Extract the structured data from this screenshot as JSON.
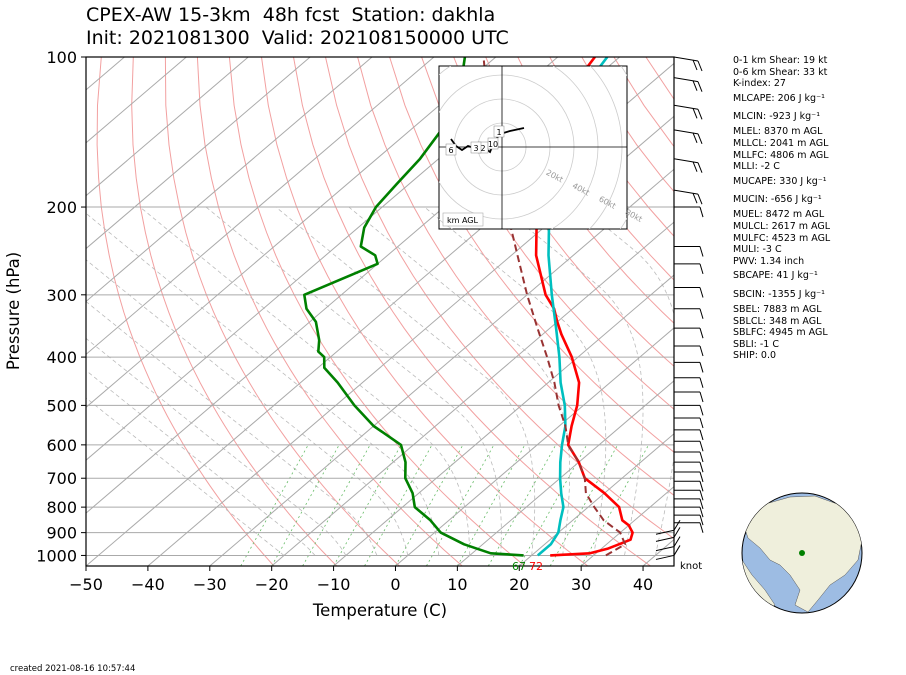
{
  "header": {
    "title_line1": "CPEX-AW 15-3km  48h fcst  Station: dakhla",
    "title_line2": "Init: 2021081300  Valid: 202108150000 UTC"
  },
  "footer": {
    "created": "created 2021-08-16 10:57:44"
  },
  "chart_data": {
    "type": "line",
    "chart_kind": "skew-T log-P sounding",
    "xlabel": "Temperature (C)",
    "ylabel": "Pressure (hPa)",
    "xlim": [
      -50,
      45
    ],
    "ylim": [
      1050,
      100
    ],
    "y_scale": "log",
    "x_ticks": [
      "−50",
      "−40",
      "−30",
      "−20",
      "−10",
      "0",
      "10",
      "20",
      "30",
      "40"
    ],
    "y_ticks": [
      1000,
      900,
      800,
      700,
      600,
      500,
      400,
      300,
      200,
      100
    ],
    "grid": true,
    "colors": {
      "temperature": "#ff0000",
      "dewpoint": "#008000",
      "virtual_temperature": "#00bfbf",
      "parcel": "#993333",
      "dry_adiabat": "#f4a0a0",
      "moist_adiabat": "#bbbbbb",
      "mixing_ratio": "#66bb66"
    },
    "series": [
      {
        "key": "temperature",
        "points": [
          [
            1000,
            23
          ],
          [
            990,
            29
          ],
          [
            970,
            31
          ],
          [
            950,
            32
          ],
          [
            930,
            33
          ],
          [
            900,
            32
          ],
          [
            870,
            30
          ],
          [
            850,
            28
          ],
          [
            800,
            25
          ],
          [
            750,
            20
          ],
          [
            700,
            14
          ],
          [
            650,
            10
          ],
          [
            600,
            5
          ],
          [
            550,
            2
          ],
          [
            500,
            -1
          ],
          [
            450,
            -5
          ],
          [
            400,
            -11
          ],
          [
            360,
            -17
          ],
          [
            340,
            -20
          ],
          [
            320,
            -23
          ],
          [
            300,
            -27
          ],
          [
            250,
            -36
          ],
          [
            200,
            -45
          ],
          [
            170,
            -51
          ],
          [
            150,
            -55
          ],
          [
            130,
            -59
          ],
          [
            115,
            -62
          ],
          [
            100,
            -64
          ]
        ]
      },
      {
        "key": "virtual_temperature",
        "points": [
          [
            1000,
            21
          ],
          [
            950,
            21
          ],
          [
            900,
            20
          ],
          [
            850,
            18
          ],
          [
            800,
            16
          ],
          [
            750,
            13
          ],
          [
            700,
            10
          ],
          [
            650,
            7
          ],
          [
            600,
            4
          ],
          [
            550,
            1
          ],
          [
            500,
            -3
          ],
          [
            450,
            -8
          ],
          [
            400,
            -13
          ],
          [
            350,
            -19
          ],
          [
            300,
            -26
          ],
          [
            250,
            -34
          ],
          [
            200,
            -43
          ],
          [
            170,
            -49
          ],
          [
            150,
            -53
          ],
          [
            130,
            -57
          ],
          [
            115,
            -60
          ],
          [
            100,
            -62
          ]
        ]
      },
      {
        "key": "dewpoint",
        "points": [
          [
            1000,
            18.7
          ],
          [
            990,
            13
          ],
          [
            970,
            10
          ],
          [
            950,
            7
          ],
          [
            900,
            1
          ],
          [
            850,
            -3
          ],
          [
            800,
            -8
          ],
          [
            750,
            -11
          ],
          [
            700,
            -15
          ],
          [
            650,
            -18
          ],
          [
            600,
            -22
          ],
          [
            550,
            -30
          ],
          [
            500,
            -37
          ],
          [
            450,
            -44
          ],
          [
            420,
            -49
          ],
          [
            400,
            -51
          ],
          [
            390,
            -53
          ],
          [
            370,
            -55
          ],
          [
            340,
            -59
          ],
          [
            320,
            -63
          ],
          [
            300,
            -66
          ],
          [
            260,
            -60
          ],
          [
            250,
            -62
          ],
          [
            240,
            -66
          ],
          [
            220,
            -69
          ],
          [
            200,
            -71
          ],
          [
            180,
            -72
          ],
          [
            160,
            -73
          ],
          [
            140,
            -75
          ],
          [
            130,
            -76
          ],
          [
            115,
            -80
          ],
          [
            100,
            -85
          ]
        ]
      },
      {
        "key": "parcel",
        "points": [
          [
            1000,
            32
          ],
          [
            950,
            33
          ],
          [
            900,
            30
          ],
          [
            850,
            25
          ],
          [
            800,
            21
          ],
          [
            750,
            17
          ],
          [
            700,
            14
          ],
          [
            650,
            10
          ],
          [
            600,
            5
          ],
          [
            550,
            1
          ],
          [
            500,
            -4
          ],
          [
            450,
            -9
          ],
          [
            400,
            -15
          ],
          [
            350,
            -22
          ],
          [
            300,
            -30
          ],
          [
            250,
            -39
          ],
          [
            200,
            -50
          ],
          [
            150,
            -64
          ],
          [
            100,
            -82
          ]
        ]
      }
    ],
    "surface_dewpoint_label": "67",
    "surface_temperature_label": "72",
    "wind_unit_label": "knot",
    "indices": [
      "0-1 km Shear: 19 kt",
      "0-6 km Shear: 33 kt",
      "K-index: 27",
      "MLCAPE: 206 J kg⁻¹",
      "MLCIN: -923 J kg⁻¹",
      "MLEL: 8370 m AGL",
      "MLLCL: 2041 m AGL",
      "MLLFC: 4806 m AGL",
      "MLLI: -2 C",
      "MUCAPE: 330 J kg⁻¹",
      "MUCIN: -656 J kg⁻¹",
      "MUEL: 8472 m AGL",
      "MULCL: 2617 m AGL",
      "MULFC: 4523 m AGL",
      "MULI: -3 C",
      "PWV: 1.34 inch",
      "SBCAPE: 41 J kg⁻¹",
      "SBCIN: -1355 J kg⁻¹",
      "SBEL: 7883 m AGL",
      "SBLCL: 348 m AGL",
      "SBLFC: 4945 m AGL",
      "SBLI: -1 C",
      "SHIP: 0.0"
    ],
    "hodograph": {
      "ring_labels": [
        "20kt",
        "40kt",
        "60kt",
        "80kt"
      ],
      "height_labels": [
        "1",
        "2",
        "3",
        "6",
        "10"
      ],
      "corner_label": "km AGL"
    }
  }
}
